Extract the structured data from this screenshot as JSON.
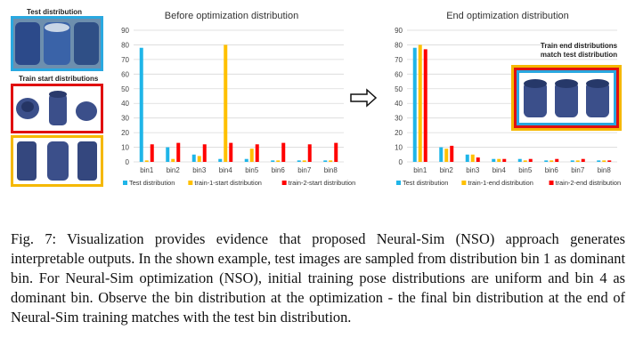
{
  "left_labels": {
    "test_distribution": "Test distribution",
    "train_start_distributions": "Train start distributions"
  },
  "right_labels": {
    "note_line1": "Train end distributions",
    "note_line2": "match test distribution"
  },
  "colors": {
    "test": "#1fb5e8",
    "train1": "#ffc000",
    "train2": "#ff0000",
    "blue_frame": "#29a8e0",
    "red_frame": "#e01010",
    "orange_frame": "#f5b800",
    "pitcher": "#3b4f8a"
  },
  "chart_data": [
    {
      "type": "bar",
      "title": "Before optimization distribution",
      "categories": [
        "bin1",
        "bin2",
        "bin3",
        "bin4",
        "bin5",
        "bin6",
        "bin7",
        "bin8"
      ],
      "ylim": [
        0,
        90
      ],
      "yticks": [
        0,
        10,
        20,
        30,
        40,
        50,
        60,
        70,
        80,
        90
      ],
      "grid": true,
      "legend_position": "bottom",
      "series": [
        {
          "name": "Test distribution",
          "color": "#1fb5e8",
          "values": [
            78,
            10,
            5,
            2,
            2,
            1,
            1,
            1
          ]
        },
        {
          "name": "train-1-start distribution",
          "color": "#ffc000",
          "values": [
            1,
            2,
            4,
            80,
            9,
            1,
            1,
            1
          ]
        },
        {
          "name": "train-2-start distribution",
          "color": "#ff0000",
          "values": [
            12,
            13,
            12,
            13,
            12,
            13,
            12,
            13
          ]
        }
      ]
    },
    {
      "type": "bar",
      "title": "End optimization distribution",
      "categories": [
        "bin1",
        "bin2",
        "bin3",
        "bin4",
        "bin5",
        "bin6",
        "bin7",
        "bin8"
      ],
      "ylim": [
        0,
        90
      ],
      "yticks": [
        0,
        10,
        20,
        30,
        40,
        50,
        60,
        70,
        80,
        90
      ],
      "grid": true,
      "legend_position": "bottom",
      "series": [
        {
          "name": "Test distribution",
          "color": "#1fb5e8",
          "values": [
            78,
            10,
            5,
            2,
            2,
            1,
            1,
            1
          ]
        },
        {
          "name": "train-1-end distribution",
          "color": "#ffc000",
          "values": [
            80,
            9,
            5,
            2,
            1,
            1,
            1,
            1
          ]
        },
        {
          "name": "train-2-end distribution",
          "color": "#ff0000",
          "values": [
            77,
            11,
            3,
            2,
            2,
            2,
            2,
            1
          ]
        }
      ]
    }
  ],
  "caption": "Fig. 7: Visualization provides evidence that proposed Neural-Sim (NSO) approach generates interpretable outputs. In the shown example, test images are sampled from distribution bin 1 as dominant bin. For Neural-Sim optimization (NSO), initial training pose distributions are uniform and bin 4 as dominant bin. Observe the bin distribution at the optimization - the final bin distribution at the end of Neural-Sim training matches with the test bin distribution."
}
